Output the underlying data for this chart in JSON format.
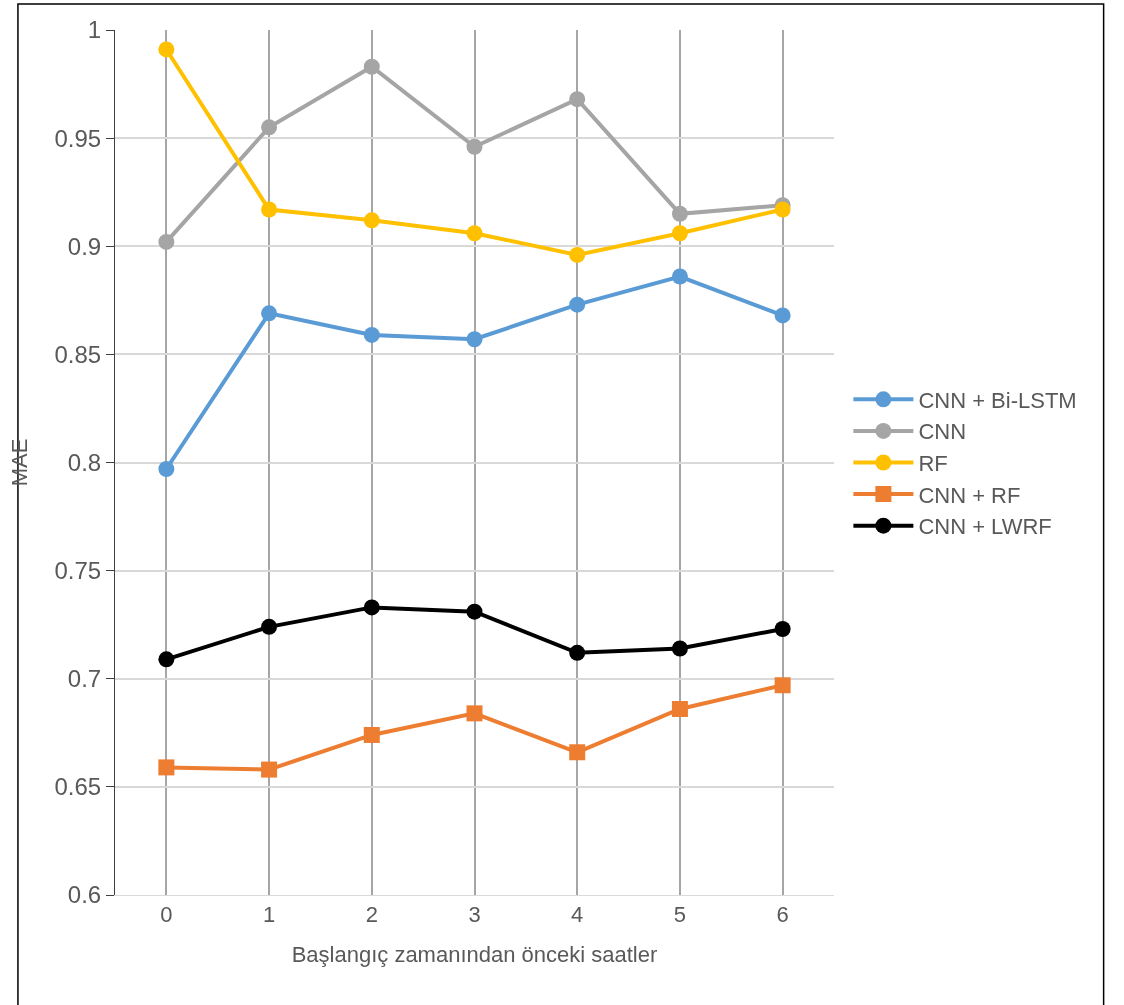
{
  "chart_data": {
    "type": "line",
    "xlabel": "Başlangıç zamanından önceki saatler",
    "ylabel": "MAE",
    "categories": [
      "0",
      "1",
      "2",
      "3",
      "4",
      "5",
      "6"
    ],
    "ylim": [
      0.6,
      1
    ],
    "yticks": [
      0.6,
      0.65,
      0.7,
      0.75,
      0.8,
      0.85,
      0.9,
      0.95,
      1
    ],
    "grid": true,
    "legend": "right",
    "line_style": "solid",
    "marker": "circle",
    "series": [
      {
        "name": "CNN + Bi-LSTM",
        "color": "#5b9bd5",
        "values": [
          0.797,
          0.869,
          0.859,
          0.857,
          0.873,
          0.886,
          0.868
        ]
      },
      {
        "name": "CNN",
        "color": "#a5a5a5",
        "values": [
          0.902,
          0.955,
          0.983,
          0.946,
          0.968,
          0.915,
          0.919
        ]
      },
      {
        "name": "RF",
        "color": "#ffc000",
        "values": [
          0.991,
          0.917,
          0.912,
          0.906,
          0.896,
          0.906,
          0.917
        ]
      },
      {
        "name": "CNN + RF",
        "color": "#ed7d31",
        "marker": "square",
        "values": [
          0.659,
          0.658,
          0.674,
          0.684,
          0.666,
          0.686,
          0.697
        ]
      },
      {
        "name": "CNN + LWRF",
        "color": "#000000",
        "values": [
          0.709,
          0.724,
          0.733,
          0.731,
          0.712,
          0.714,
          0.723
        ]
      }
    ]
  }
}
